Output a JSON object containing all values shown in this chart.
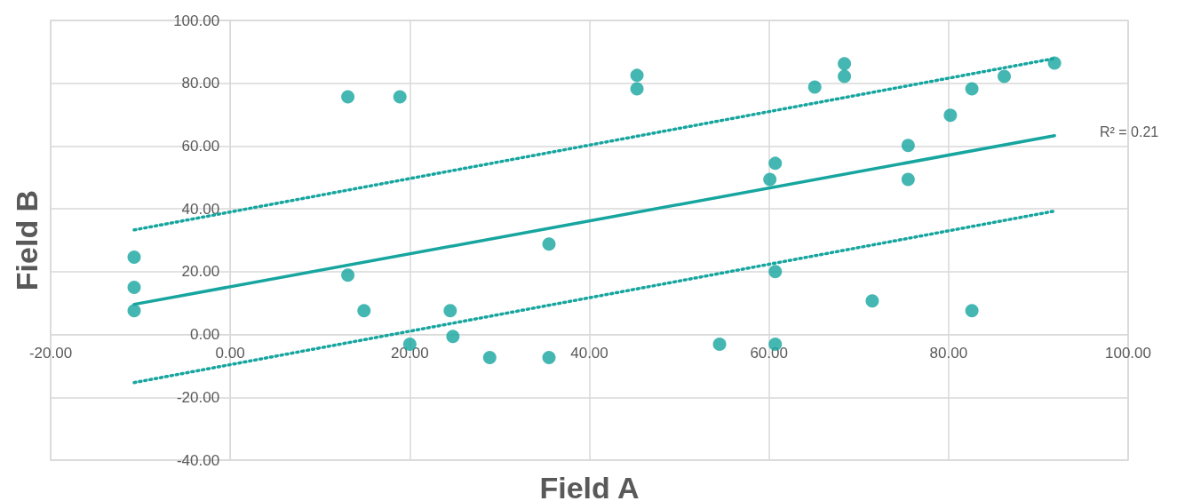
{
  "chart_data": {
    "type": "scatter",
    "xlabel": "Field A",
    "ylabel": "Field B",
    "xlim": [
      -20,
      100
    ],
    "ylim": [
      -40,
      100
    ],
    "xticks": [
      {
        "value": -20,
        "label": "-20.00"
      },
      {
        "value": 0,
        "label": "0.00"
      },
      {
        "value": 20,
        "label": "20.00"
      },
      {
        "value": 40,
        "label": "40.00"
      },
      {
        "value": 60,
        "label": "60.00"
      },
      {
        "value": 80,
        "label": "80.00"
      },
      {
        "value": 100,
        "label": "100.00"
      }
    ],
    "yticks": [
      {
        "value": -40,
        "label": "-40.00"
      },
      {
        "value": -20,
        "label": "-20.00"
      },
      {
        "value": 0,
        "label": "0.00"
      },
      {
        "value": 20,
        "label": "20.00"
      },
      {
        "value": 40,
        "label": "40.00"
      },
      {
        "value": 60,
        "label": "60.00"
      },
      {
        "value": 80,
        "label": "80.00"
      },
      {
        "value": 100,
        "label": "100.00"
      }
    ],
    "grid": true,
    "marker": "circle",
    "series": [
      {
        "color": "#17a59f",
        "x": [
          -10.7,
          -10.7,
          -10.7,
          13.1,
          13.1,
          14.9,
          18.9,
          20,
          24.5,
          24.8,
          28.9,
          35.5,
          35.5,
          45.3,
          45.3,
          54.5,
          60.1,
          60.7,
          60.7,
          60.7,
          65.1,
          68.4,
          68.4,
          71.5,
          75.5,
          75.5,
          80.2,
          82.6,
          82.6,
          86.2,
          91.8
        ],
        "values": [
          24.6,
          15,
          7.6,
          75.7,
          18.9,
          7.6,
          75.7,
          -3.1,
          7.6,
          -0.6,
          -7.3,
          28.8,
          -7.3,
          82.5,
          78.2,
          -3.1,
          49.4,
          54.5,
          20,
          -3.1,
          78.8,
          86.2,
          82.2,
          10.7,
          60.2,
          49.4,
          69.8,
          78.2,
          7.6,
          82.2,
          86.4
        ]
      },
      {
        "type": "line",
        "color": "#17a59f",
        "marker": "none",
        "line_style": "solid",
        "x": [
          -10.7,
          91.8
        ],
        "values": [
          9.6,
          63.3
        ]
      },
      {
        "type": "line",
        "color": "#17a59f",
        "marker": "none",
        "line_style": "dotted",
        "x": [
          -10.7,
          91.8
        ],
        "values": [
          33.3,
          87.9
        ]
      },
      {
        "type": "line",
        "color": "#17a59f",
        "marker": "none",
        "line_style": "dotted",
        "x": [
          -10.7,
          91.8
        ],
        "values": [
          -15.3,
          39.3
        ]
      }
    ],
    "annotations": [
      "R² = 0.21"
    ]
  }
}
